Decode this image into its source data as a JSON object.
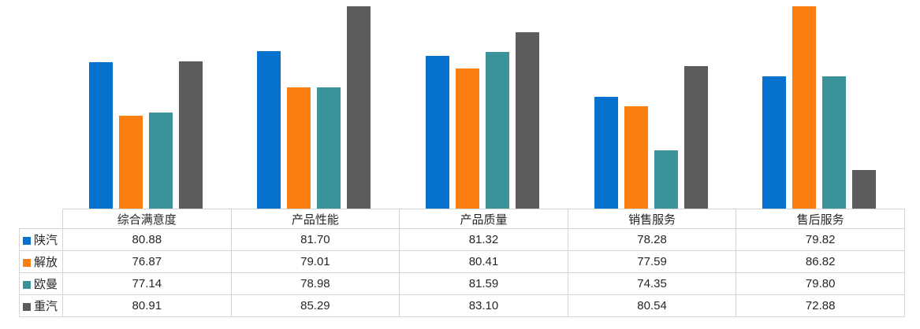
{
  "chart_data": {
    "type": "bar",
    "title": "",
    "xlabel": "",
    "ylabel": "",
    "categories": [
      "综合满意度",
      "产品性能",
      "产品质量",
      "销售服务",
      "售后服务"
    ],
    "series": [
      {
        "name": "陕汽",
        "color": "#0672CE",
        "values": [
          80.88,
          81.7,
          81.32,
          78.28,
          79.82
        ]
      },
      {
        "name": "解放",
        "color": "#FC7D12",
        "values": [
          76.87,
          79.01,
          80.41,
          77.59,
          86.82
        ]
      },
      {
        "name": "欧曼",
        "color": "#3A929B",
        "values": [
          77.14,
          78.98,
          81.59,
          74.35,
          79.8
        ]
      },
      {
        "name": "重汽",
        "color": "#5C5C5C",
        "values": [
          80.91,
          85.29,
          83.1,
          80.54,
          72.88
        ]
      }
    ],
    "ylim": [
      70,
      85
    ],
    "clip_to_ylim": true,
    "grid": false,
    "axis_visible": false,
    "legend_position": "data-table-keys",
    "value_format": "2-decimals",
    "table_border_color": "#d4d4d4",
    "text_color": "#262626"
  }
}
